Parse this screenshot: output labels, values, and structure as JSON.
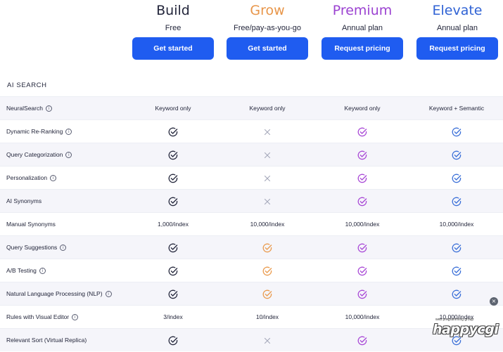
{
  "plans": [
    {
      "name": "Build",
      "subtitle": "Free",
      "cta": "Get started",
      "color": "#23263b"
    },
    {
      "name": "Grow",
      "subtitle": "Free/pay-as-you-go",
      "cta": "Get started",
      "color": "#e8964a"
    },
    {
      "name": "Premium",
      "subtitle": "Annual plan",
      "cta": "Request pricing",
      "color": "#9b42d1"
    },
    {
      "name": "Elevate",
      "subtitle": "Annual plan",
      "cta": "Request pricing",
      "color": "#2f62d4"
    }
  ],
  "section_title": "AI SEARCH",
  "check_colors": [
    "#23263b",
    "#ea9a4c",
    "#a847d6",
    "#3a6fd8"
  ],
  "cross_color": "#a5a8ba",
  "rows": [
    {
      "feature": "NeuralSearch",
      "info": true,
      "cells": [
        "Keyword only",
        "Keyword only",
        "Keyword only",
        "Keyword + Semantic"
      ]
    },
    {
      "feature": "Dynamic Re-Ranking",
      "info": true,
      "cells": [
        "check",
        "cross",
        "check",
        "check"
      ]
    },
    {
      "feature": "Query Categorization",
      "info": true,
      "cells": [
        "check",
        "cross",
        "check",
        "check"
      ]
    },
    {
      "feature": "Personalization",
      "info": true,
      "cells": [
        "check",
        "cross",
        "check",
        "check"
      ]
    },
    {
      "feature": "AI Synonyms",
      "info": false,
      "cells": [
        "check",
        "cross",
        "check",
        "check"
      ]
    },
    {
      "feature": "Manual Synonyms",
      "info": false,
      "cells": [
        "1,000/index",
        "10,000/index",
        "10,000/index",
        "10,000/index"
      ]
    },
    {
      "feature": "Query Suggestions",
      "info": true,
      "cells": [
        "check",
        "check",
        "check",
        "check"
      ]
    },
    {
      "feature": "A/B Testing",
      "info": true,
      "cells": [
        "check",
        "check",
        "check",
        "check"
      ]
    },
    {
      "feature": "Natural Language Processing (NLP)",
      "info": true,
      "cells": [
        "check",
        "check",
        "check",
        "check"
      ]
    },
    {
      "feature": "Rules with Visual Editor",
      "info": true,
      "cells": [
        "3/index",
        "10/index",
        "10,000/index",
        "10,000/index"
      ]
    },
    {
      "feature": "Relevant Sort (Virtual Replica)",
      "info": false,
      "cells": [
        "check",
        "cross",
        "check",
        "check"
      ]
    }
  ],
  "watermark": {
    "tagline": "web programming group",
    "logo": "happycgi"
  },
  "close_badge": "×",
  "info_glyph": "i"
}
